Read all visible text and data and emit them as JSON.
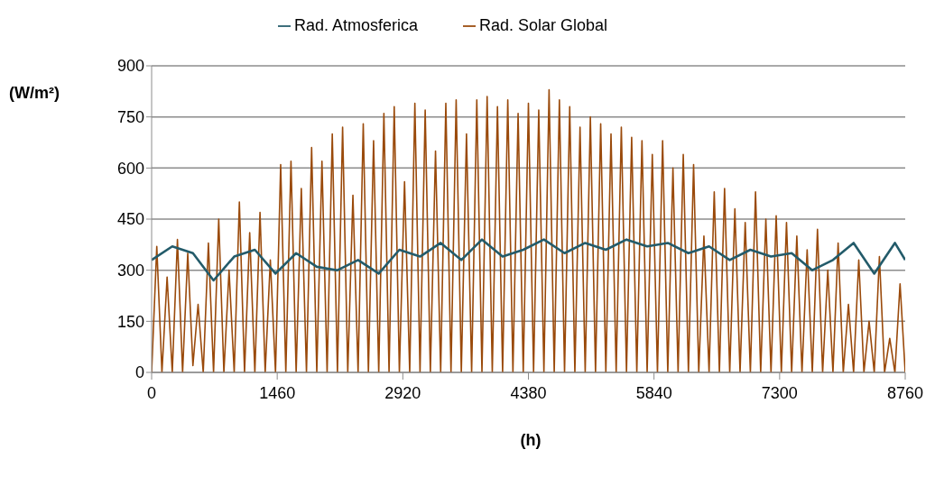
{
  "chart_data": {
    "type": "line",
    "xlabel": "(h)",
    "ylabel": "(W/m²)",
    "xlim": [
      0,
      8760
    ],
    "xticks": [
      0,
      1460,
      2920,
      4380,
      5840,
      7300,
      8760
    ],
    "ylim": [
      0,
      900
    ],
    "yticks": [
      0,
      150,
      300,
      450,
      600,
      750,
      900
    ],
    "grid": "y",
    "legend": "top",
    "line_style": "solid",
    "series": [
      {
        "name": "Rad. Solar Global",
        "color": "#9a4a0b",
        "x": [
          0,
          60,
          120,
          180,
          240,
          300,
          360,
          420,
          480,
          540,
          600,
          660,
          720,
          780,
          840,
          900,
          960,
          1020,
          1080,
          1140,
          1200,
          1260,
          1320,
          1380,
          1440,
          1500,
          1560,
          1620,
          1680,
          1740,
          1800,
          1860,
          1920,
          1980,
          2040,
          2100,
          2160,
          2220,
          2280,
          2340,
          2400,
          2460,
          2520,
          2580,
          2640,
          2700,
          2760,
          2820,
          2880,
          2940,
          3000,
          3060,
          3120,
          3180,
          3240,
          3300,
          3360,
          3420,
          3480,
          3540,
          3600,
          3660,
          3720,
          3780,
          3840,
          3900,
          3960,
          4020,
          4080,
          4140,
          4200,
          4260,
          4320,
          4380,
          4440,
          4500,
          4560,
          4620,
          4680,
          4740,
          4800,
          4860,
          4920,
          4980,
          5040,
          5100,
          5160,
          5220,
          5280,
          5340,
          5400,
          5460,
          5520,
          5580,
          5640,
          5700,
          5760,
          5820,
          5880,
          5940,
          6000,
          6060,
          6120,
          6180,
          6240,
          6300,
          6360,
          6420,
          6480,
          6540,
          6600,
          6660,
          6720,
          6780,
          6840,
          6900,
          6960,
          7020,
          7080,
          7140,
          7200,
          7260,
          7320,
          7380,
          7440,
          7500,
          7560,
          7620,
          7680,
          7740,
          7800,
          7860,
          7920,
          7980,
          8040,
          8100,
          8160,
          8220,
          8280,
          8340,
          8400,
          8460,
          8520,
          8580,
          8640,
          8700,
          8760
        ],
        "values": [
          0,
          370,
          0,
          280,
          0,
          390,
          0,
          350,
          20,
          200,
          0,
          380,
          0,
          450,
          0,
          300,
          0,
          500,
          0,
          410,
          0,
          470,
          0,
          330,
          0,
          610,
          0,
          620,
          0,
          540,
          0,
          660,
          0,
          620,
          0,
          700,
          0,
          720,
          0,
          520,
          0,
          730,
          0,
          680,
          0,
          760,
          0,
          780,
          0,
          560,
          0,
          790,
          0,
          770,
          0,
          650,
          0,
          790,
          0,
          800,
          0,
          700,
          0,
          800,
          0,
          810,
          0,
          780,
          0,
          800,
          0,
          760,
          0,
          790,
          0,
          770,
          0,
          830,
          0,
          800,
          0,
          780,
          0,
          720,
          0,
          750,
          0,
          730,
          0,
          700,
          0,
          720,
          0,
          690,
          0,
          680,
          0,
          640,
          0,
          680,
          0,
          600,
          0,
          640,
          0,
          610,
          0,
          400,
          0,
          530,
          0,
          540,
          0,
          480,
          0,
          440,
          0,
          530,
          0,
          450,
          0,
          460,
          0,
          440,
          0,
          400,
          0,
          360,
          0,
          420,
          0,
          300,
          0,
          380,
          0,
          200,
          0,
          330,
          0,
          150,
          0,
          340,
          0,
          100,
          0,
          260,
          0
        ]
      },
      {
        "name": "Rad. Atmosferica",
        "color": "#235b6a",
        "x": [
          0,
          240,
          480,
          720,
          960,
          1200,
          1440,
          1680,
          1920,
          2160,
          2400,
          2640,
          2880,
          3120,
          3360,
          3600,
          3840,
          4080,
          4320,
          4560,
          4800,
          5040,
          5280,
          5520,
          5760,
          6000,
          6240,
          6480,
          6720,
          6960,
          7200,
          7440,
          7680,
          7920,
          8160,
          8400,
          8640,
          8760
        ],
        "values": [
          330,
          370,
          350,
          270,
          340,
          360,
          290,
          350,
          310,
          300,
          330,
          290,
          360,
          340,
          380,
          330,
          390,
          340,
          360,
          390,
          350,
          380,
          360,
          390,
          370,
          380,
          350,
          370,
          330,
          360,
          340,
          350,
          300,
          330,
          380,
          290,
          380,
          330
        ]
      }
    ]
  }
}
